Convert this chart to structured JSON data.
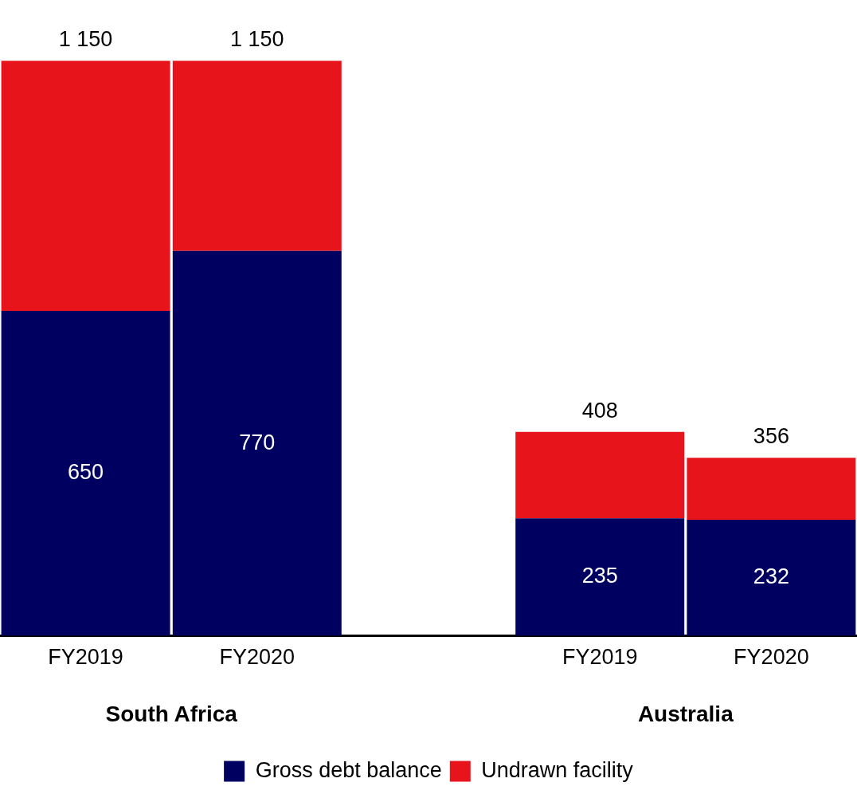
{
  "chart_data": {
    "type": "bar",
    "stacked": true,
    "categories": [
      "FY2019",
      "FY2020",
      null,
      "FY2019",
      "FY2020"
    ],
    "series": [
      {
        "name": "Gross debt balance",
        "color": "#000060",
        "values": [
          650,
          770,
          null,
          235,
          232
        ],
        "value_labels": [
          "650",
          "770",
          null,
          "235",
          "232"
        ]
      },
      {
        "name": "Undrawn facility",
        "color": "#e8141c",
        "values": [
          500,
          380,
          null,
          173,
          124
        ]
      }
    ],
    "totals": [
      "1 150",
      "1 150",
      null,
      "408",
      "356"
    ],
    "annotations": [
      "South Africa",
      "Australia"
    ],
    "tick_labels": "x",
    "grid": false,
    "legend": "bottom"
  }
}
